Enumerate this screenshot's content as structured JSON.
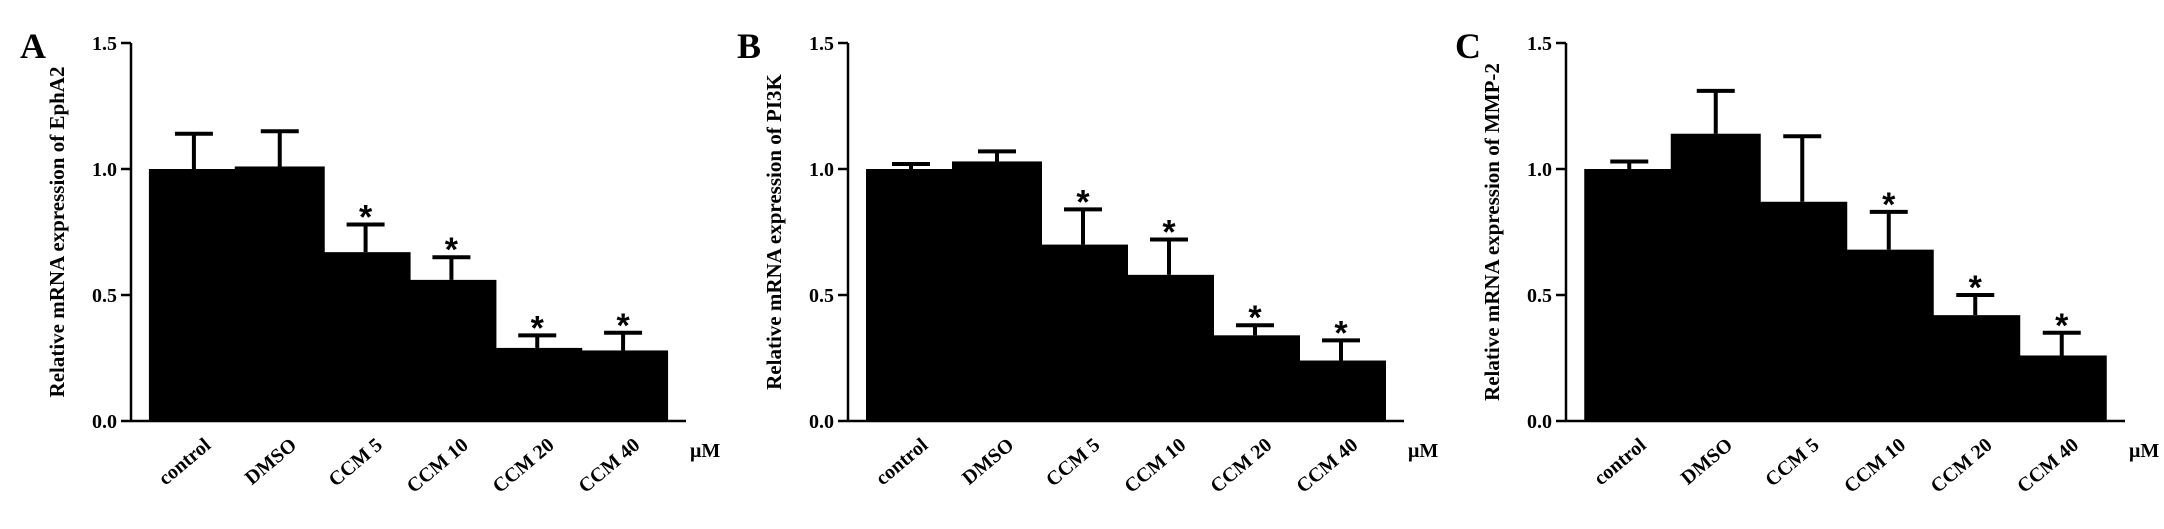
{
  "chart_data": [
    {
      "type": "bar",
      "panel": "A",
      "ylabel": "Relative mRNA expression of EphA2",
      "unit_label": "μM",
      "categories": [
        "control",
        "DMSO",
        "CCM 5",
        "CCM 10",
        "CCM 20",
        "CCM 40"
      ],
      "values": [
        1.0,
        1.01,
        0.67,
        0.56,
        0.29,
        0.28
      ],
      "errors": [
        0.14,
        0.14,
        0.11,
        0.09,
        0.05,
        0.07
      ],
      "significance": [
        "",
        "",
        "*",
        "*",
        "*",
        "*"
      ],
      "ylim": [
        0,
        1.5
      ],
      "yticks": [
        "0.0",
        "0.5",
        "1.0",
        "1.5"
      ],
      "bar_color": "#000000"
    },
    {
      "type": "bar",
      "panel": "B",
      "ylabel": "Relative mRNA expression of PI3K",
      "unit_label": "μM",
      "categories": [
        "control",
        "DMSO",
        "CCM 5",
        "CCM 10",
        "CCM 20",
        "CCM 40"
      ],
      "values": [
        1.0,
        1.03,
        0.7,
        0.58,
        0.34,
        0.24
      ],
      "errors": [
        0.02,
        0.04,
        0.14,
        0.14,
        0.04,
        0.08
      ],
      "significance": [
        "",
        "",
        "*",
        "*",
        "*",
        "*"
      ],
      "ylim": [
        0,
        1.5
      ],
      "yticks": [
        "0.0",
        "0.5",
        "1.0",
        "1.5"
      ],
      "bar_color": "#000000"
    },
    {
      "type": "bar",
      "panel": "C",
      "ylabel": "Relative mRNA expression of MMP-2",
      "unit_label": "μM",
      "categories": [
        "control",
        "DMSO",
        "CCM 5",
        "CCM 10",
        "CCM 20",
        "CCM 40"
      ],
      "values": [
        1.0,
        1.14,
        0.87,
        0.68,
        0.42,
        0.26
      ],
      "errors": [
        0.03,
        0.17,
        0.26,
        0.15,
        0.08,
        0.09
      ],
      "significance": [
        "",
        "",
        "",
        "*",
        "*",
        "*"
      ],
      "ylim": [
        0,
        1.5
      ],
      "yticks": [
        "0.0",
        "0.5",
        "1.0",
        "1.5"
      ],
      "bar_color": "#000000"
    }
  ]
}
